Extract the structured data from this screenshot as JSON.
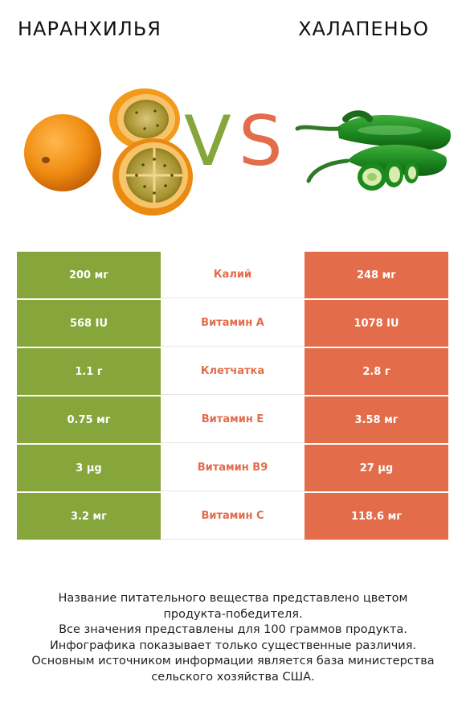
{
  "left_name": "НАРАНХИЛЬЯ",
  "right_name": "ХАЛАПЕНЬО",
  "vs": {
    "v": "V",
    "s": "S"
  },
  "colors": {
    "left": "#86a53a",
    "right": "#e36c4a"
  },
  "icons": {
    "left": "naranjilla-fruit-image",
    "right": "jalapeno-pepper-image"
  },
  "rows": [
    {
      "left": "200 мг",
      "nutrient": "Калий",
      "right": "248 мг",
      "winner": "right"
    },
    {
      "left": "568 IU",
      "nutrient": "Витамин A",
      "right": "1078 IU",
      "winner": "right"
    },
    {
      "left": "1.1 г",
      "nutrient": "Клетчатка",
      "right": "2.8 г",
      "winner": "right"
    },
    {
      "left": "0.75 мг",
      "nutrient": "Витамин E",
      "right": "3.58 мг",
      "winner": "right"
    },
    {
      "left": "3 µg",
      "nutrient": "Витамин B9",
      "right": "27 µg",
      "winner": "right"
    },
    {
      "left": "3.2 мг",
      "nutrient": "Витамин C",
      "right": "118.6 мг",
      "winner": "right"
    }
  ],
  "footer": [
    "Название питательного вещества представлено цветом",
    "продукта-победителя.",
    "Все значения представлены для 100 граммов продукта.",
    "Инфографика показывает только существенные различия.",
    "Основным источником информации является база министерства",
    "сельского хозяйства США."
  ]
}
